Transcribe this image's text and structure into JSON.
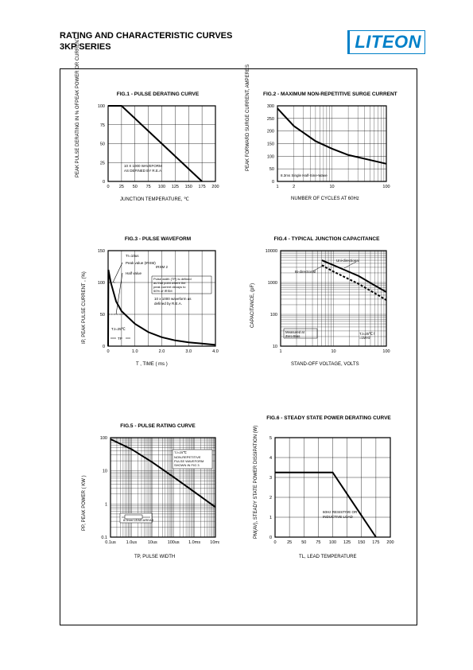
{
  "header": {
    "title_line1": "RATING AND CHARACTERISTIC CURVES",
    "title_line2": "3KP SERIES",
    "logo_text": "LITEON"
  },
  "fig1": {
    "title": "FIG.1 - PULSE DERATING CURVE",
    "xlabel": "JUNCTION TEMPERATURE, ℃",
    "ylabel": "PEAK PULSE DERATING IN % OFPEAK POWER OR CURRENT",
    "xticks": [
      0,
      25,
      50,
      75,
      100,
      125,
      150,
      175,
      200
    ],
    "yticks": [
      0,
      25,
      50,
      75,
      100
    ],
    "xlim": [
      0,
      200
    ],
    "ylim": [
      0,
      100
    ],
    "data": [
      [
        0,
        100
      ],
      [
        25,
        100
      ],
      [
        175,
        0
      ]
    ],
    "note1": "10 X 1000 WAVEFORM",
    "note2": "AS DEFINED BY R.E.A",
    "grid_color": "#000",
    "line_width": 2,
    "background": "#fff"
  },
  "fig2": {
    "title": "FIG.2 - MAXIMUM NON-REPETITIVE SURGE CURRENT",
    "xlabel": "NUMBER OF CYCLES AT 60Hz",
    "ylabel": "PEAK FORWARD SURGE CURRENT, AMPERES",
    "xticks": [
      1,
      2,
      10,
      100
    ],
    "yticks": [
      0,
      50,
      100,
      150,
      200,
      250,
      300
    ],
    "ylim": [
      0,
      300
    ],
    "data": [
      [
        1,
        290
      ],
      [
        2,
        220
      ],
      [
        5,
        160
      ],
      [
        10,
        130
      ],
      [
        20,
        105
      ],
      [
        50,
        85
      ],
      [
        100,
        70
      ]
    ],
    "note": "8.3ms Single Half-Sine-Wave",
    "grid_color": "#000",
    "line_width": 2,
    "background": "#fff"
  },
  "fig3": {
    "title": "FIG.3 - PULSE  WAVEFORM",
    "xlabel": "T , TIME  ( ms )",
    "ylabel": "IP, PEAK  PULSE  CURRENT , (%)",
    "xticks": [
      "0",
      "1.0",
      "2.0",
      "3.0",
      "4.0"
    ],
    "yticks": [
      0,
      50,
      100,
      150
    ],
    "xlim": [
      0,
      4
    ],
    "ylim": [
      0,
      150
    ],
    "data": [
      [
        0,
        0
      ],
      [
        0.01,
        120
      ],
      [
        0.1,
        100
      ],
      [
        0.3,
        70
      ],
      [
        0.5,
        55
      ],
      [
        1.0,
        35
      ],
      [
        1.5,
        22
      ],
      [
        2.0,
        14
      ],
      [
        2.5,
        9
      ],
      [
        3.0,
        6
      ],
      [
        3.5,
        4
      ],
      [
        4.0,
        2
      ]
    ],
    "annotations": {
      "tr": "Tr=10us",
      "peak": "Peak value (IRSM)",
      "half": "Half value",
      "irsm": "IRSM 2",
      "desc": "Pulse width (TP) is defined as that point where the peak current decays to 50% of IRSM",
      "waveform": "10 x 1000 waveform as defined by R.E.A.",
      "tj": "TJ=25℃",
      "tp": "TP"
    },
    "line_width": 2,
    "background": "#fff"
  },
  "fig4": {
    "title": "FIG.4 - TYPICAL JUNCTION CAPACITANCE",
    "xlabel": "STAND-OFF VOLTAGE, VOLTS",
    "ylabel": "CAPACITANCE, (pF)",
    "xticks": [
      1,
      10,
      100
    ],
    "yticks": [
      10,
      100,
      1000,
      10000
    ],
    "bi_label": "Bi-directional",
    "uni_label": "Uni-directional",
    "note": "Measured at Zero Bias",
    "tj_note": "TJ=25℃ f=1MHz",
    "data_bi": [
      [
        6,
        5000
      ],
      [
        10,
        3500
      ],
      [
        30,
        1600
      ],
      [
        70,
        700
      ],
      [
        100,
        500
      ]
    ],
    "data_uni": [
      [
        6,
        3500
      ],
      [
        10,
        2200
      ],
      [
        30,
        900
      ],
      [
        70,
        400
      ],
      [
        100,
        280
      ]
    ],
    "line_width": 2,
    "background": "#fff"
  },
  "fig5": {
    "title": "FIG.5 - PULSE  RATING  CURVE",
    "xlabel": "TP, PULSE  WIDTH",
    "ylabel": "PP, PEAK  POWER  ( KW )",
    "xticks": [
      "0.1us",
      "1.0us",
      "10us",
      "100us",
      "1.0ms",
      "10ms"
    ],
    "yticks": [
      0.1,
      1.0,
      10,
      100
    ],
    "data": [
      [
        0.1,
        90
      ],
      [
        1,
        45
      ],
      [
        10,
        18
      ],
      [
        100,
        6.5
      ],
      [
        1000,
        2.3
      ],
      [
        10000,
        0.8
      ]
    ],
    "notes": {
      "tj": "TJ=25℃",
      "nonrep": "NON-REPETITIVE PULSE WAVEFORM SHOWN IN FIG 3",
      "lead": "8.0mm LEAD AREAS"
    },
    "line_width": 2,
    "background": "#fff"
  },
  "fig6": {
    "title": "FIG.6 - STEADY STATE POWER DERATING CURVE",
    "xlabel": "TL, LEAD TEMPERATURE",
    "ylabel": "PM(AV), STEADY STATE POWER DISSIPATION (W)",
    "xticks": [
      0,
      25,
      50,
      75,
      100,
      125,
      150,
      175,
      200
    ],
    "yticks": [
      0,
      1,
      2,
      3,
      4,
      5
    ],
    "xlim": [
      0,
      200
    ],
    "ylim": [
      0,
      5
    ],
    "data": [
      [
        0,
        3.25
      ],
      [
        100,
        3.25
      ],
      [
        175,
        0
      ]
    ],
    "note": "60Hz RESISTIVE OR INDUCTIVE LOAD",
    "line_width": 2,
    "background": "#fff"
  }
}
